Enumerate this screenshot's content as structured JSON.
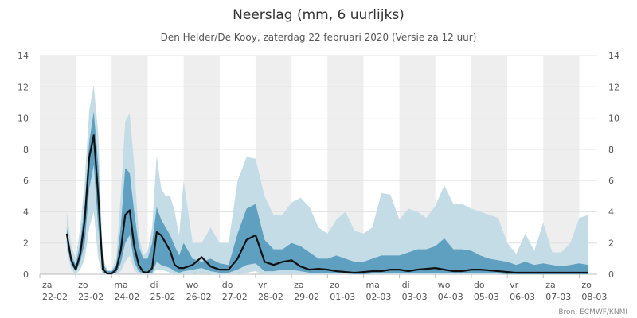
{
  "chart_data": {
    "type": "area",
    "title": "Neerslag (mm, 6 uurlijks)",
    "subtitle": "Den Helder/De Kooy, zaterdag 22 februari 2020 (Versie za 12 uur)",
    "source": "Bron: ECMWF/KNMI",
    "xlabel": "",
    "ylabel": "",
    "ylim": [
      0,
      14
    ],
    "yticks": [
      0,
      2,
      4,
      6,
      8,
      10,
      12,
      14
    ],
    "grid": true,
    "legend": "none",
    "x_unit": "days since 22-02 00:00",
    "x_range": [
      0,
      15.5
    ],
    "day_labels": [
      {
        "weekday": "za",
        "date": "22-02"
      },
      {
        "weekday": "zo",
        "date": "23-02"
      },
      {
        "weekday": "ma",
        "date": "24-02"
      },
      {
        "weekday": "di",
        "date": "25-02"
      },
      {
        "weekday": "wo",
        "date": "26-02"
      },
      {
        "weekday": "do",
        "date": "27-02"
      },
      {
        "weekday": "vr",
        "date": "28-02"
      },
      {
        "weekday": "za",
        "date": "29-02"
      },
      {
        "weekday": "zo",
        "date": "01-03"
      },
      {
        "weekday": "ma",
        "date": "02-03"
      },
      {
        "weekday": "di",
        "date": "03-03"
      },
      {
        "weekday": "wo",
        "date": "04-03"
      },
      {
        "weekday": "do",
        "date": "05-03"
      },
      {
        "weekday": "vr",
        "date": "06-03"
      },
      {
        "weekday": "za",
        "date": "07-03"
      },
      {
        "weekday": "zo",
        "date": "08-03"
      }
    ],
    "x": [
      0.75,
      0.875,
      1.0,
      1.125,
      1.25,
      1.375,
      1.5,
      1.625,
      1.75,
      1.875,
      2.0,
      2.125,
      2.25,
      2.375,
      2.5,
      2.625,
      2.75,
      2.875,
      3.0,
      3.125,
      3.25,
      3.375,
      3.5,
      3.625,
      3.75,
      3.875,
      4.0,
      4.25,
      4.5,
      4.75,
      5.0,
      5.25,
      5.5,
      5.75,
      6.0,
      6.25,
      6.5,
      6.75,
      7.0,
      7.25,
      7.5,
      7.75,
      8.0,
      8.25,
      8.5,
      8.75,
      9.0,
      9.25,
      9.5,
      9.75,
      10.0,
      10.25,
      10.5,
      10.75,
      11.0,
      11.25,
      11.5,
      11.75,
      12.0,
      12.25,
      12.5,
      12.75,
      13.0,
      13.25,
      13.5,
      13.75,
      14.0,
      14.25,
      14.5,
      14.75,
      15.0,
      15.25
    ],
    "series": [
      {
        "name": "max",
        "values": [
          4.0,
          1.8,
          1.0,
          3.0,
          6.0,
          10.5,
          12.1,
          9.0,
          1.0,
          0.3,
          0.3,
          1.0,
          5.0,
          9.8,
          10.3,
          7.0,
          2.5,
          1.2,
          1.5,
          3.0,
          7.6,
          5.5,
          5.0,
          5.0,
          4.0,
          2.5,
          6.0,
          2.0,
          2.0,
          3.0,
          2.0,
          2.0,
          6.0,
          7.5,
          7.4,
          5.0,
          3.8,
          3.8,
          4.6,
          4.9,
          4.3,
          3.0,
          2.6,
          3.5,
          4.0,
          2.8,
          2.6,
          3.0,
          5.2,
          5.1,
          3.5,
          4.2,
          4.0,
          3.6,
          4.4,
          5.7,
          4.5,
          4.5,
          4.2,
          4.0,
          3.8,
          3.6,
          2.0,
          1.3,
          2.6,
          1.5,
          3.3,
          1.4,
          1.4,
          2.0,
          3.6,
          3.8
        ]
      },
      {
        "name": "p75",
        "values": [
          3.0,
          1.2,
          0.6,
          2.0,
          4.5,
          8.5,
          10.4,
          7.0,
          0.7,
          0.2,
          0.2,
          0.6,
          3.0,
          6.8,
          6.5,
          4.0,
          1.8,
          1.0,
          1.0,
          2.0,
          4.3,
          3.5,
          3.0,
          2.5,
          1.8,
          1.2,
          2.0,
          1.0,
          0.8,
          1.0,
          0.7,
          0.6,
          2.6,
          4.2,
          4.5,
          2.2,
          1.6,
          1.6,
          2.0,
          1.8,
          1.4,
          1.0,
          1.0,
          1.2,
          1.0,
          0.8,
          0.8,
          1.0,
          1.2,
          1.2,
          1.2,
          1.4,
          1.6,
          1.6,
          1.8,
          2.3,
          1.6,
          1.6,
          1.5,
          1.2,
          1.0,
          0.9,
          0.8,
          0.6,
          0.8,
          0.6,
          0.7,
          0.6,
          0.5,
          0.6,
          0.7,
          0.6
        ]
      },
      {
        "name": "median",
        "values": [
          2.6,
          0.9,
          0.3,
          1.3,
          3.5,
          7.5,
          8.9,
          5.0,
          0.3,
          0.05,
          0.05,
          0.3,
          1.5,
          3.8,
          4.1,
          1.8,
          0.6,
          0.15,
          0.1,
          0.4,
          2.7,
          2.5,
          2.0,
          1.5,
          0.6,
          0.4,
          0.4,
          0.6,
          1.1,
          0.5,
          0.3,
          0.3,
          1.0,
          2.2,
          2.5,
          0.8,
          0.6,
          0.8,
          0.9,
          0.5,
          0.3,
          0.35,
          0.3,
          0.2,
          0.15,
          0.1,
          0.15,
          0.2,
          0.2,
          0.3,
          0.3,
          0.2,
          0.3,
          0.35,
          0.4,
          0.3,
          0.2,
          0.2,
          0.3,
          0.3,
          0.25,
          0.2,
          0.15,
          0.1,
          0.1,
          0.1,
          0.1,
          0.1,
          0.1,
          0.1,
          0.1,
          0.1
        ]
      },
      {
        "name": "p25",
        "values": [
          2.0,
          0.6,
          0.2,
          0.8,
          2.0,
          5.5,
          7.0,
          3.0,
          0.1,
          0.0,
          0.0,
          0.1,
          0.7,
          2.0,
          2.5,
          0.8,
          0.2,
          0.05,
          0.05,
          0.1,
          0.8,
          0.6,
          0.5,
          0.4,
          0.2,
          0.1,
          0.2,
          0.3,
          0.4,
          0.2,
          0.1,
          0.1,
          0.3,
          0.6,
          0.7,
          0.2,
          0.2,
          0.3,
          0.3,
          0.2,
          0.1,
          0.1,
          0.1,
          0.05,
          0.05,
          0.0,
          0.0,
          0.05,
          0.05,
          0.1,
          0.1,
          0.05,
          0.05,
          0.1,
          0.1,
          0.1,
          0.05,
          0.05,
          0.05,
          0.05,
          0.05,
          0.05,
          0.0,
          0.0,
          0.0,
          0.0,
          0.0,
          0.0,
          0.0,
          0.0,
          0.0,
          0.0
        ]
      },
      {
        "name": "min",
        "values": [
          1.5,
          0.3,
          0.0,
          0.3,
          1.0,
          3.0,
          4.0,
          1.0,
          0.0,
          0.0,
          0.0,
          0.0,
          0.2,
          0.8,
          1.2,
          0.3,
          0.0,
          0.0,
          0.0,
          0.0,
          0.3,
          0.3,
          0.2,
          0.1,
          0.0,
          0.0,
          0.0,
          0.0,
          0.1,
          0.0,
          0.0,
          0.0,
          0.0,
          0.1,
          0.2,
          0.0,
          0.0,
          0.0,
          0.0,
          0.0,
          0.0,
          0.0,
          0.0,
          0.0,
          0.0,
          0.0,
          0.0,
          0.0,
          0.0,
          0.0,
          0.0,
          0.0,
          0.0,
          0.0,
          0.0,
          0.0,
          0.0,
          0.0,
          0.0,
          0.0,
          0.0,
          0.0,
          0.0,
          0.0,
          0.0,
          0.0,
          0.0,
          0.0,
          0.0,
          0.0,
          0.0,
          0.0
        ]
      }
    ],
    "colors": {
      "band_outer": "#c3dce6",
      "band_inner": "#5f9fbf",
      "band_mid": "#3f85aa",
      "median_line": "#111111",
      "weekend_stripe": "#eeeeee",
      "axis": "#cccccc"
    }
  }
}
